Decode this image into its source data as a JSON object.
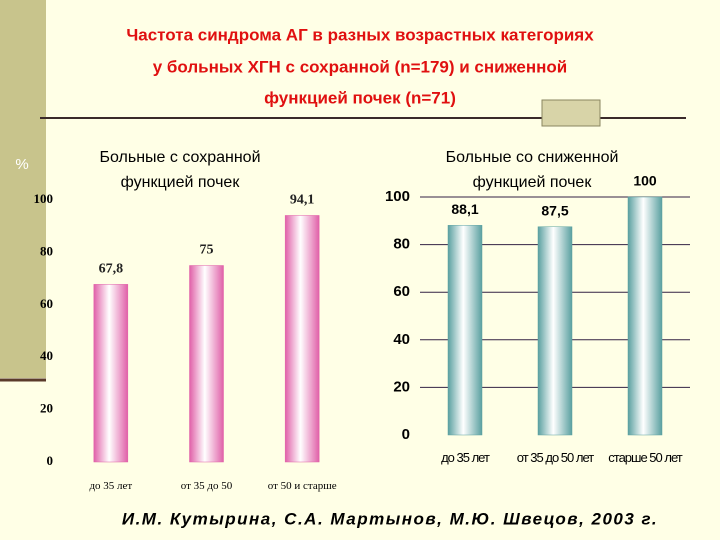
{
  "title": [
    "Частота синдрома АГ  в разных возрастных категориях",
    "у больных ХГН с сохранной (n=179) и сниженной",
    "функцией почек (n=71)"
  ],
  "footer": "И.М. Кутырина, С.А. Мартынов, М.Ю. Швецов, 2003 г.",
  "chart_data": [
    {
      "type": "bar",
      "title": [
        "Больные с сохранной",
        "функцией почек"
      ],
      "ylabel": "%",
      "categories": [
        "до 35 лет",
        "от 35 до 50",
        "от 50 и старше"
      ],
      "values": [
        67.8,
        75,
        94.1
      ],
      "value_labels": [
        "67,8",
        "75",
        "94,1"
      ],
      "color": "#e060a8",
      "ylim": [
        0,
        100
      ],
      "yticks": [
        0,
        20,
        40,
        60,
        80,
        100
      ],
      "grid": false
    },
    {
      "type": "bar",
      "title": [
        "Больные со сниженной",
        "функцией почек"
      ],
      "categories": [
        "до 35 лет",
        "от 35 до 50 лет",
        "старше 50 лет"
      ],
      "values": [
        88.1,
        87.5,
        100
      ],
      "value_labels": [
        "88,1",
        "87,5",
        "100"
      ],
      "color": "#5aa0a0",
      "ylim": [
        0,
        100
      ],
      "yticks": [
        0,
        20,
        40,
        60,
        80,
        100
      ],
      "grid": true
    }
  ]
}
